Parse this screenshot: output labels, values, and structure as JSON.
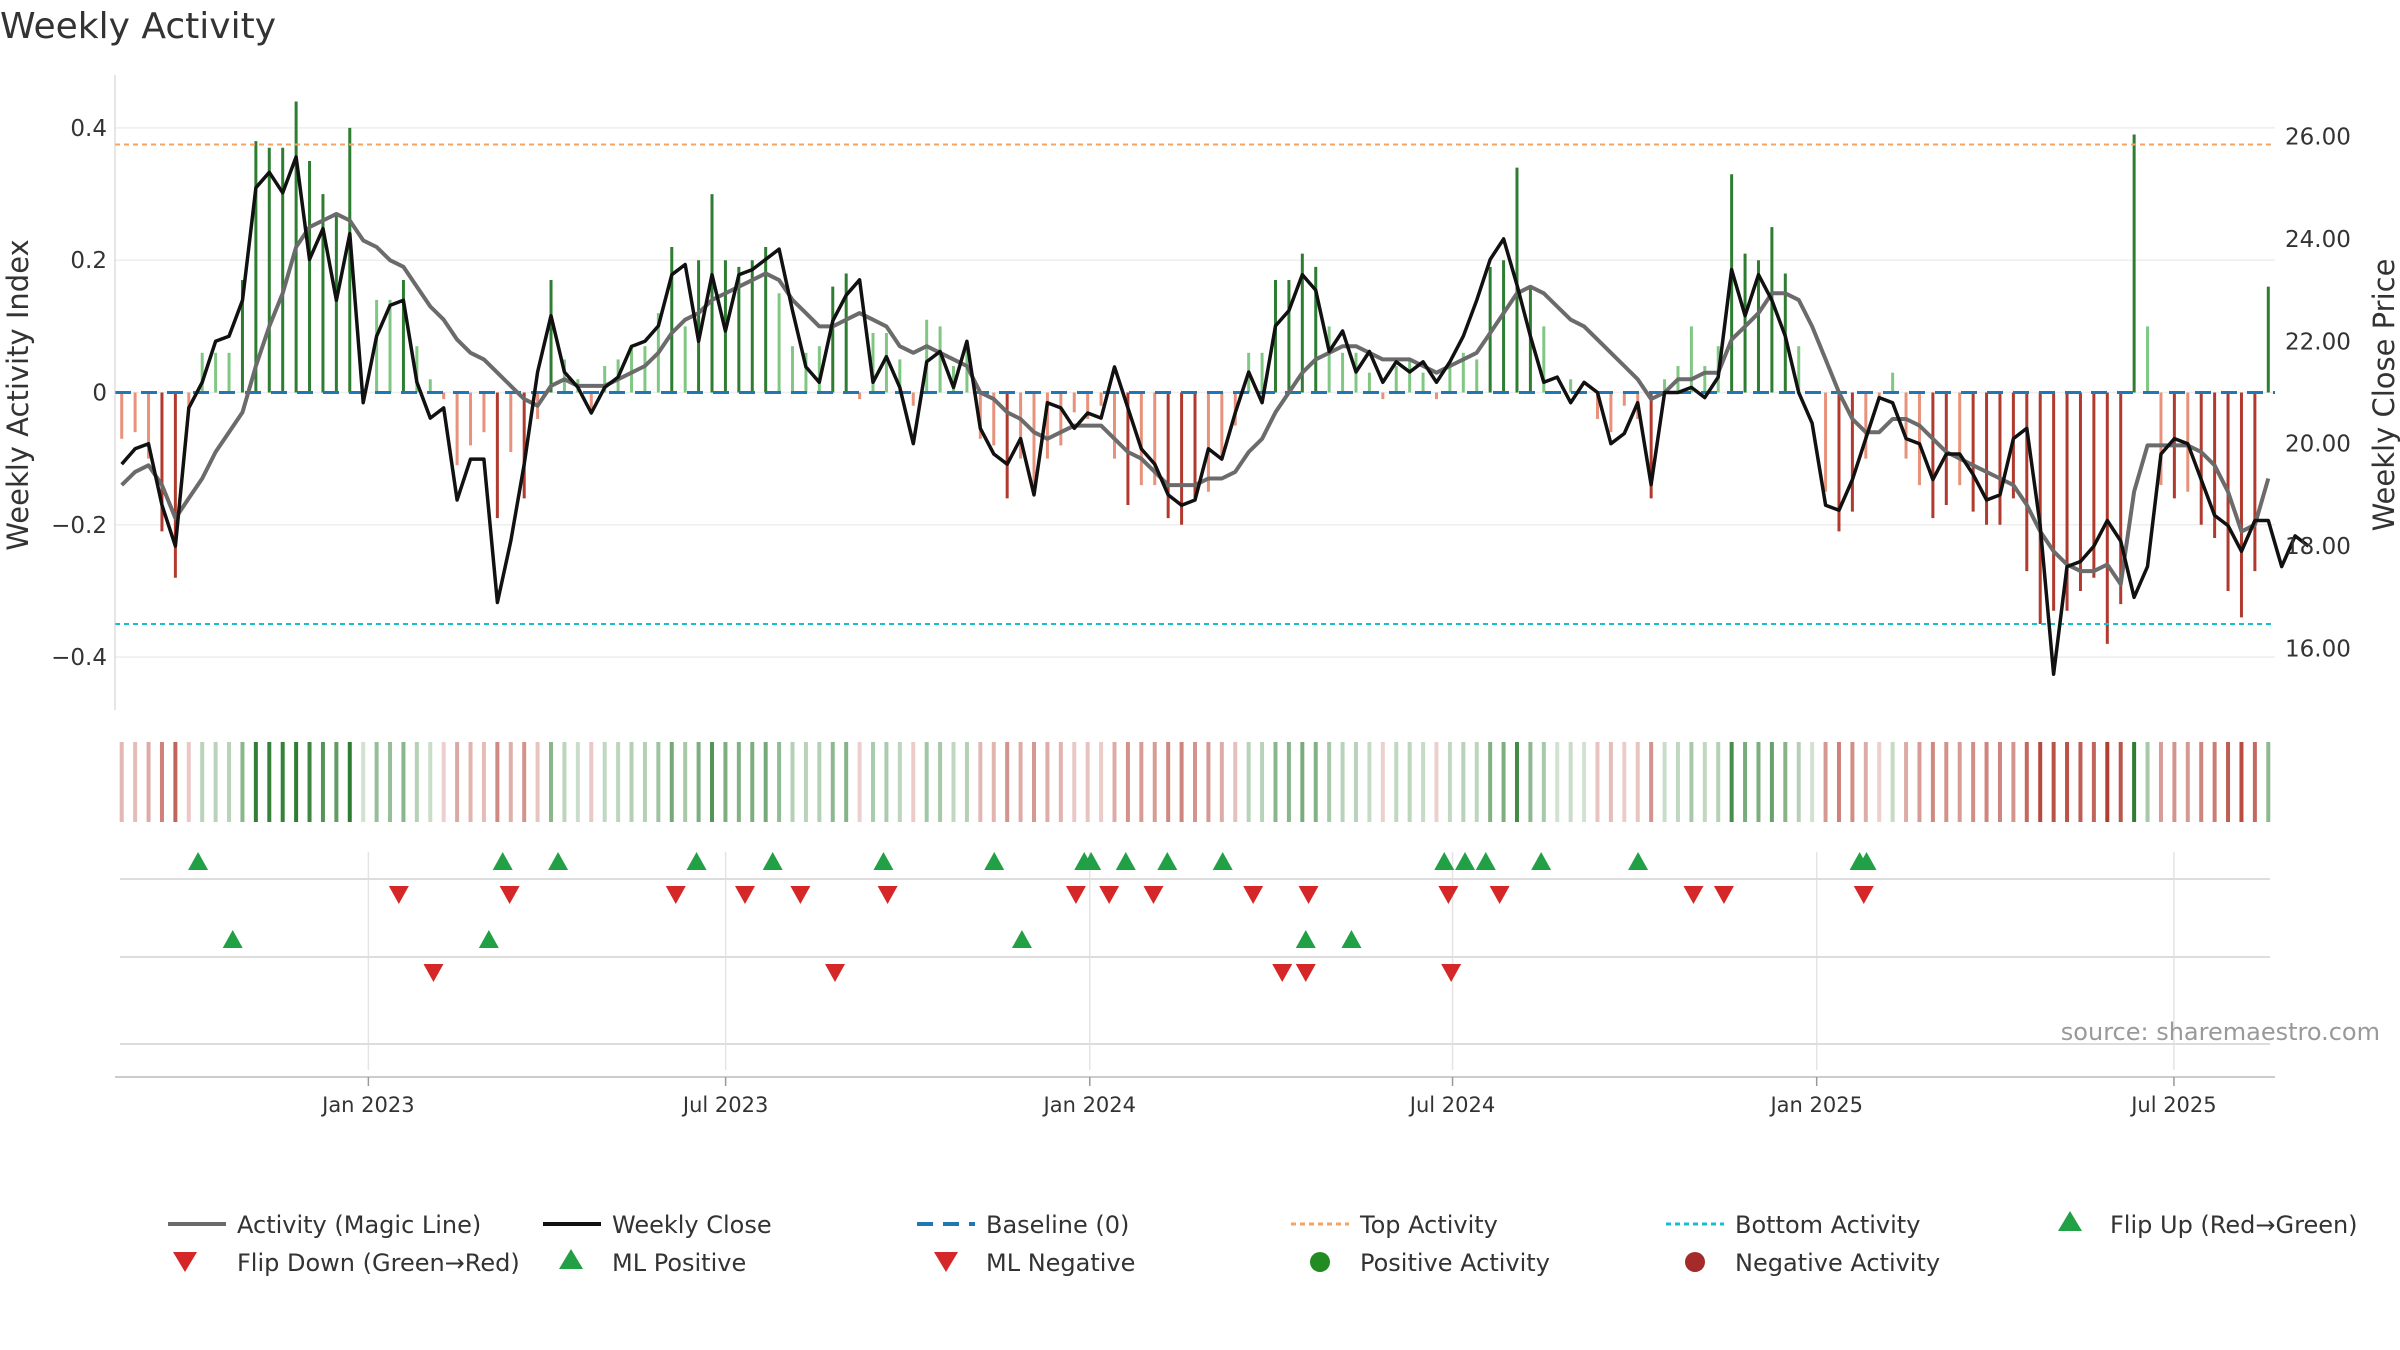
{
  "chart_data": {
    "type": "bar",
    "title": "Weekly Activity",
    "ylabel": "Weekly Activity Index",
    "y2label": "Weekly Close Price",
    "ylim": [
      -0.48,
      0.48
    ],
    "y2lim": [
      14.8,
      27.2
    ],
    "yticks": [
      {
        "value": 0.4,
        "label": "0.4"
      },
      {
        "value": 0.2,
        "label": "0.2"
      },
      {
        "value": 0,
        "label": "0"
      },
      {
        "value": -0.2,
        "label": "−0.2"
      },
      {
        "value": -0.4,
        "label": "−0.4"
      }
    ],
    "y2ticks": [
      {
        "value": 26,
        "label": "26.00"
      },
      {
        "value": 24,
        "label": "24.00"
      },
      {
        "value": 22,
        "label": "22.00"
      },
      {
        "value": 20,
        "label": "20.00"
      },
      {
        "value": 18,
        "label": "18.00"
      },
      {
        "value": 16,
        "label": "16.00"
      }
    ],
    "x_range_weeks": [
      0,
      156
    ],
    "xticks": [
      {
        "week": 18.3,
        "label": "Jan 2023"
      },
      {
        "week": 44.1,
        "label": "Jul 2023"
      },
      {
        "week": 70.4,
        "label": "Jan 2024"
      },
      {
        "week": 96.6,
        "label": "Jul 2024"
      },
      {
        "week": 122.9,
        "label": "Jan 2025"
      },
      {
        "week": 148.7,
        "label": "Jul 2025"
      }
    ],
    "top_activity": 0.375,
    "bottom_activity": -0.35,
    "baseline": 0,
    "activity": [
      -0.07,
      -0.06,
      -0.1,
      -0.21,
      -0.28,
      -0.03,
      0.06,
      0.06,
      0.06,
      0.17,
      0.38,
      0.37,
      0.37,
      0.44,
      0.35,
      0.3,
      0.27,
      0.4,
      0.0,
      0.14,
      0.14,
      0.17,
      0.07,
      0.02,
      -0.01,
      -0.11,
      -0.08,
      -0.06,
      -0.19,
      -0.09,
      -0.16,
      -0.04,
      0.17,
      0.05,
      0.02,
      -0.03,
      0.04,
      0.05,
      0.07,
      0.07,
      0.12,
      0.22,
      0.1,
      0.2,
      0.3,
      0.2,
      0.19,
      0.2,
      0.22,
      0.15,
      0.07,
      0.06,
      0.07,
      0.16,
      0.18,
      -0.01,
      0.09,
      0.09,
      0.05,
      -0.02,
      0.11,
      0.1,
      0.04,
      0.07,
      -0.07,
      -0.08,
      -0.16,
      -0.1,
      -0.15,
      -0.1,
      -0.08,
      -0.03,
      -0.04,
      -0.02,
      -0.1,
      -0.17,
      -0.14,
      -0.14,
      -0.19,
      -0.2,
      -0.16,
      -0.15,
      -0.1,
      -0.05,
      0.06,
      0.06,
      0.17,
      0.17,
      0.21,
      0.19,
      0.1,
      0.06,
      0.06,
      0.03,
      -0.01,
      0.04,
      0.05,
      0.03,
      -0.01,
      0.04,
      0.06,
      0.05,
      0.19,
      0.2,
      0.34,
      0.16,
      0.1,
      0.0,
      0.02,
      0.0,
      -0.04,
      -0.06,
      -0.02,
      -0.04,
      -0.16,
      0.02,
      0.04,
      0.1,
      0.04,
      0.07,
      0.33,
      0.21,
      0.2,
      0.25,
      0.18,
      0.07,
      0.0,
      -0.15,
      -0.21,
      -0.18,
      -0.1,
      -0.01,
      0.03,
      -0.1,
      -0.14,
      -0.19,
      -0.17,
      -0.14,
      -0.18,
      -0.2,
      -0.2,
      -0.16,
      -0.27,
      -0.35,
      -0.33,
      -0.33,
      -0.3,
      -0.28,
      -0.38,
      -0.32,
      0.39,
      0.1,
      -0.14,
      -0.16,
      -0.15,
      -0.2,
      -0.22,
      -0.3,
      -0.34,
      -0.27,
      0.16
    ],
    "close": [
      19.6,
      19.9,
      20.0,
      18.8,
      18.0,
      20.7,
      21.2,
      22.0,
      22.1,
      22.8,
      25.0,
      25.3,
      24.9,
      25.6,
      23.6,
      24.2,
      22.8,
      24.1,
      20.8,
      22.1,
      22.7,
      22.8,
      21.2,
      20.5,
      20.7,
      18.9,
      19.7,
      19.7,
      16.9,
      18.1,
      19.6,
      21.4,
      22.5,
      21.4,
      21.1,
      20.6,
      21.1,
      21.3,
      21.9,
      22.0,
      22.3,
      23.3,
      23.5,
      22.0,
      23.3,
      22.2,
      23.3,
      23.4,
      23.6,
      23.8,
      22.6,
      21.5,
      21.2,
      22.4,
      22.9,
      23.2,
      21.2,
      21.7,
      21.1,
      20.0,
      21.6,
      21.8,
      21.1,
      22.0,
      20.3,
      19.8,
      19.6,
      20.1,
      19.0,
      20.8,
      20.7,
      20.3,
      20.6,
      20.5,
      21.5,
      20.7,
      19.9,
      19.6,
      19.0,
      18.8,
      18.9,
      19.9,
      19.7,
      20.6,
      21.4,
      20.8,
      22.3,
      22.6,
      23.3,
      23.0,
      21.8,
      22.2,
      21.4,
      21.8,
      21.2,
      21.6,
      21.4,
      21.6,
      21.2,
      21.6,
      22.1,
      22.8,
      23.6,
      24.0,
      23.1,
      22.1,
      21.2,
      21.3,
      20.8,
      21.2,
      21.0,
      20.0,
      20.2,
      20.8,
      19.2,
      21.0,
      21.0,
      21.1,
      20.9,
      21.3,
      23.4,
      22.5,
      23.3,
      22.8,
      22.1,
      21.0,
      20.4,
      18.8,
      18.7,
      19.3,
      20.1,
      20.9,
      20.8,
      20.1,
      20.0,
      19.3,
      19.8,
      19.8,
      19.4,
      18.9,
      19.0,
      20.1,
      20.3,
      18.4,
      15.5,
      17.6,
      17.7,
      18.0,
      18.5,
      18.1,
      17.0,
      17.6,
      19.8,
      20.1,
      20.0,
      19.3,
      18.6,
      18.4,
      17.9,
      18.5,
      18.5,
      17.6,
      18.2,
      18.0
    ],
    "magic_line": [
      -0.14,
      -0.12,
      -0.11,
      -0.14,
      -0.19,
      -0.16,
      -0.13,
      -0.09,
      -0.06,
      -0.03,
      0.04,
      0.1,
      0.15,
      0.22,
      0.25,
      0.26,
      0.27,
      0.26,
      0.23,
      0.22,
      0.2,
      0.19,
      0.16,
      0.13,
      0.11,
      0.08,
      0.06,
      0.05,
      0.03,
      0.01,
      -0.01,
      -0.02,
      0.01,
      0.02,
      0.01,
      0.01,
      0.01,
      0.02,
      0.03,
      0.04,
      0.06,
      0.09,
      0.11,
      0.12,
      0.14,
      0.15,
      0.16,
      0.17,
      0.18,
      0.17,
      0.14,
      0.12,
      0.1,
      0.1,
      0.11,
      0.12,
      0.11,
      0.1,
      0.07,
      0.06,
      0.07,
      0.06,
      0.05,
      0.04,
      0.0,
      -0.01,
      -0.03,
      -0.04,
      -0.06,
      -0.07,
      -0.06,
      -0.05,
      -0.05,
      -0.05,
      -0.07,
      -0.09,
      -0.1,
      -0.12,
      -0.14,
      -0.14,
      -0.14,
      -0.13,
      -0.13,
      -0.12,
      -0.09,
      -0.07,
      -0.03,
      0.0,
      0.03,
      0.05,
      0.06,
      0.07,
      0.07,
      0.06,
      0.05,
      0.05,
      0.05,
      0.04,
      0.03,
      0.04,
      0.05,
      0.06,
      0.09,
      0.12,
      0.15,
      0.16,
      0.15,
      0.13,
      0.11,
      0.1,
      0.08,
      0.06,
      0.04,
      0.02,
      -0.01,
      0.0,
      0.02,
      0.02,
      0.03,
      0.03,
      0.08,
      0.1,
      0.12,
      0.15,
      0.15,
      0.14,
      0.1,
      0.05,
      0.0,
      -0.04,
      -0.06,
      -0.06,
      -0.04,
      -0.04,
      -0.05,
      -0.07,
      -0.09,
      -0.1,
      -0.11,
      -0.12,
      -0.13,
      -0.14,
      -0.17,
      -0.21,
      -0.24,
      -0.26,
      -0.27,
      -0.27,
      -0.26,
      -0.29,
      -0.15,
      -0.08,
      -0.08,
      -0.08,
      -0.08,
      -0.09,
      -0.11,
      -0.15,
      -0.21,
      -0.2,
      -0.13
    ],
    "flip_up": [
      6,
      28,
      32,
      42,
      47.5,
      55.5,
      63.5,
      70,
      70.5,
      73,
      76,
      80,
      96,
      97.5,
      99,
      103,
      110,
      126,
      126.5
    ],
    "flip_down": [
      20.5,
      28.5,
      40.5,
      45.5,
      49.5,
      55.8,
      69.4,
      71.8,
      75,
      82.2,
      86.2,
      96.3,
      100,
      114,
      116.2,
      126.3
    ],
    "ml_positive": [
      8.5,
      27,
      65.5,
      86,
      89.3
    ],
    "ml_negative": [
      23,
      52,
      84.3,
      86,
      96.5
    ],
    "legend": {
      "magic_line": "Activity (Magic Line)",
      "close": "Weekly Close",
      "baseline": "Baseline (0)",
      "top": "Top Activity",
      "bottom": "Bottom Activity",
      "flip_up": "Flip Up (Red→Green)",
      "flip_down": "Flip Down (Green→Red)",
      "ml_pos": "ML Positive",
      "ml_neg": "ML Negative",
      "pos_act": "Positive Activity",
      "neg_act": "Negative Activity"
    },
    "colors": {
      "pos_strong": "#2e7d32",
      "pos_light": "#81c784",
      "neg_strong": "#b03a2e",
      "neg_light": "#e8927c",
      "magic": "#6b6b6b",
      "close": "#111111",
      "baseline": "#1f77b4",
      "top": "#f4a460",
      "bottom": "#17becf",
      "marker_up": "#22a045",
      "marker_down": "#d62728",
      "pos_dot": "#228b22",
      "neg_dot": "#a52a2a"
    }
  },
  "source": "source: sharemaestro.com"
}
